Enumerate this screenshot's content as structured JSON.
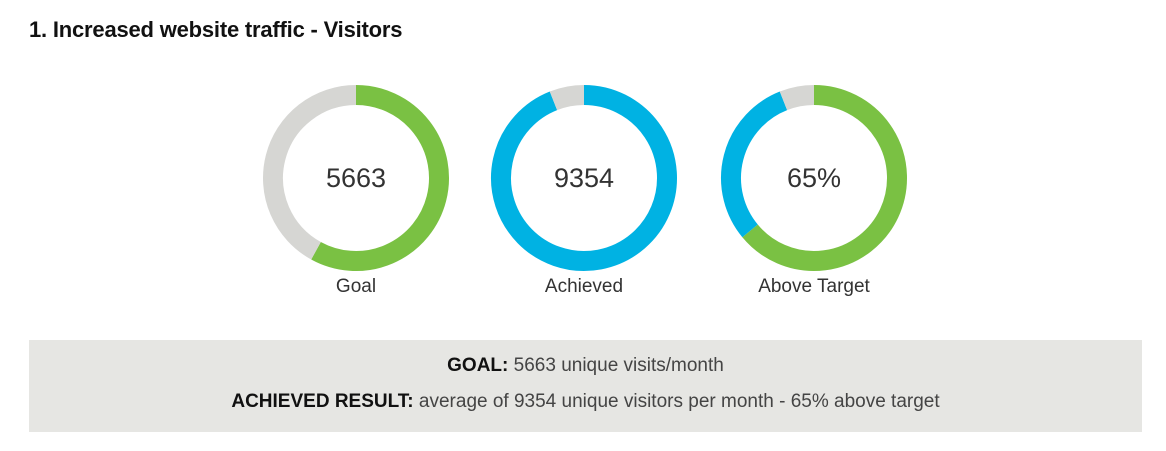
{
  "header": {
    "title": "1. Increased website traffic - Visitors"
  },
  "chart_data": {
    "type": "donut",
    "charts": [
      {
        "label": "Goal",
        "value_text": "5663",
        "fill_fraction": 0.58,
        "color": "#7ac143",
        "track_color": "#d6d6d3"
      },
      {
        "label": "Achieved",
        "value_text": "9354",
        "fill_fraction": 0.94,
        "color": "#00b2e3",
        "track_color": "#d6d6d3"
      },
      {
        "label": "Above Target",
        "value_text": "65%",
        "fill_fraction": 0.64,
        "color": "#7ac143",
        "track_color": "#00b2e3",
        "gap_color": "#d6d6d3",
        "secondary_fraction": 0.3
      }
    ]
  },
  "summary": {
    "goal_label": "GOAL:",
    "goal_text": " 5663 unique visits/month",
    "result_label": "ACHIEVED RESULT:",
    "result_text": " average of 9354 unique visitors per month - 65% above target"
  }
}
